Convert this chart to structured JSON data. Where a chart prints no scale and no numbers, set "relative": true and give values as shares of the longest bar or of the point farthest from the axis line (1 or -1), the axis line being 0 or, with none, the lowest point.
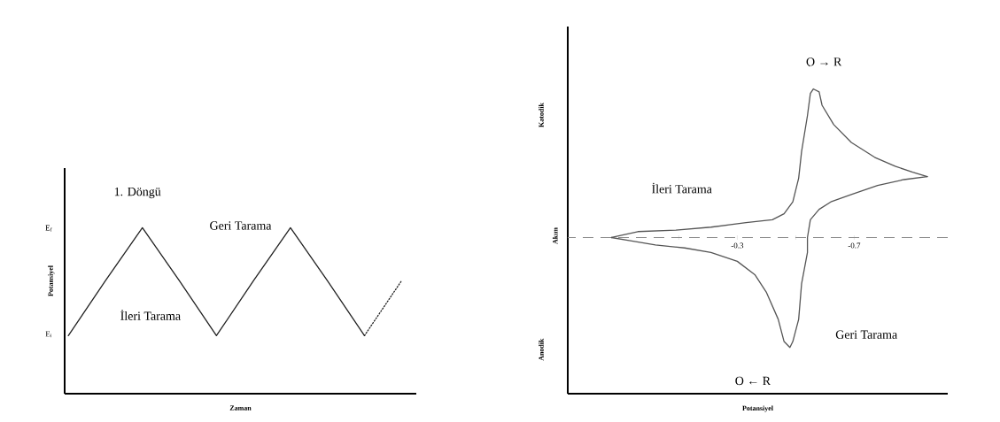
{
  "chart_data": [
    {
      "type": "line",
      "xlabel": "Zaman",
      "ylabel": "Potansiyel",
      "relative": true,
      "tick_labels": false,
      "categories": [
        null,
        null,
        null,
        null,
        null,
        null,
        null,
        null,
        null,
        null
      ],
      "series": [
        {
          "color": "#222222",
          "line_style": "solid",
          "values": [
            0.35,
            0.68,
            1,
            0.68,
            0.35,
            0.68,
            1,
            0.68,
            0.35,
            null
          ]
        },
        {
          "color": "#222222",
          "line_style": "dotted",
          "values": [
            null,
            null,
            null,
            null,
            null,
            null,
            null,
            null,
            0.35,
            0.68
          ]
        }
      ],
      "annotations": [
        "E$_{i}$",
        "E$_{f}$",
        "1. Döngü",
        "Geri Tarama",
        "İleri Tarama"
      ]
    },
    {
      "type": "line",
      "xlabel": "Potansiyel",
      "ylabel": "Akım",
      "relative": true,
      "tick_labels": "x",
      "xlim": [
        0.28,
        -1.02
      ],
      "xticks": [
        {
          "value": -0.1,
          "label": null
        },
        -0.3,
        {
          "value": -0.5,
          "label": null
        },
        -0.7
      ],
      "ref_lines": [
        {
          "axis": "y",
          "value": 0,
          "line_style": "dashed",
          "color": "#8c8c8c"
        }
      ],
      "series": [
        {
          "color": "#555555",
          "x": [
            0.13,
            0.04,
            -0.09,
            -0.21,
            -0.33,
            -0.42,
            -0.46,
            -0.49,
            -0.51,
            -0.52,
            -0.54,
            -0.55,
            -0.56,
            -0.58,
            -0.59,
            -0.63,
            -0.69,
            -0.77,
            -0.84,
            -0.9,
            -0.95
          ],
          "values": [
            0,
            0.04,
            0.05,
            0.07,
            0.1,
            0.12,
            0.16,
            0.24,
            0.4,
            0.58,
            0.82,
            0.97,
            1,
            0.98,
            0.89,
            0.76,
            0.64,
            0.54,
            0.48,
            0.44,
            0.41
          ]
        },
        {
          "color": "#555555",
          "x": [
            -0.95,
            -0.87,
            -0.78,
            -0.69,
            -0.62,
            -0.58,
            -0.55,
            -0.54,
            -0.54,
            -0.52,
            -0.51,
            -0.49,
            -0.48,
            -0.46,
            -0.44,
            -0.4,
            -0.36,
            -0.3,
            -0.21,
            -0.12,
            -0.02,
            0.07,
            0.13
          ],
          "values": [
            0.41,
            0.39,
            0.35,
            0.29,
            0.24,
            0.19,
            0.12,
            0,
            -0.1,
            -0.31,
            -0.55,
            -0.7,
            -0.74,
            -0.7,
            -0.55,
            -0.37,
            -0.25,
            -0.16,
            -0.1,
            -0.07,
            -0.05,
            -0.02,
            0
          ]
        }
      ],
      "annotations": [
        "O → R",
        "O ← R",
        "İleri Tarama",
        "Geri Tarama",
        "Katodik",
        "Anodik"
      ]
    }
  ]
}
